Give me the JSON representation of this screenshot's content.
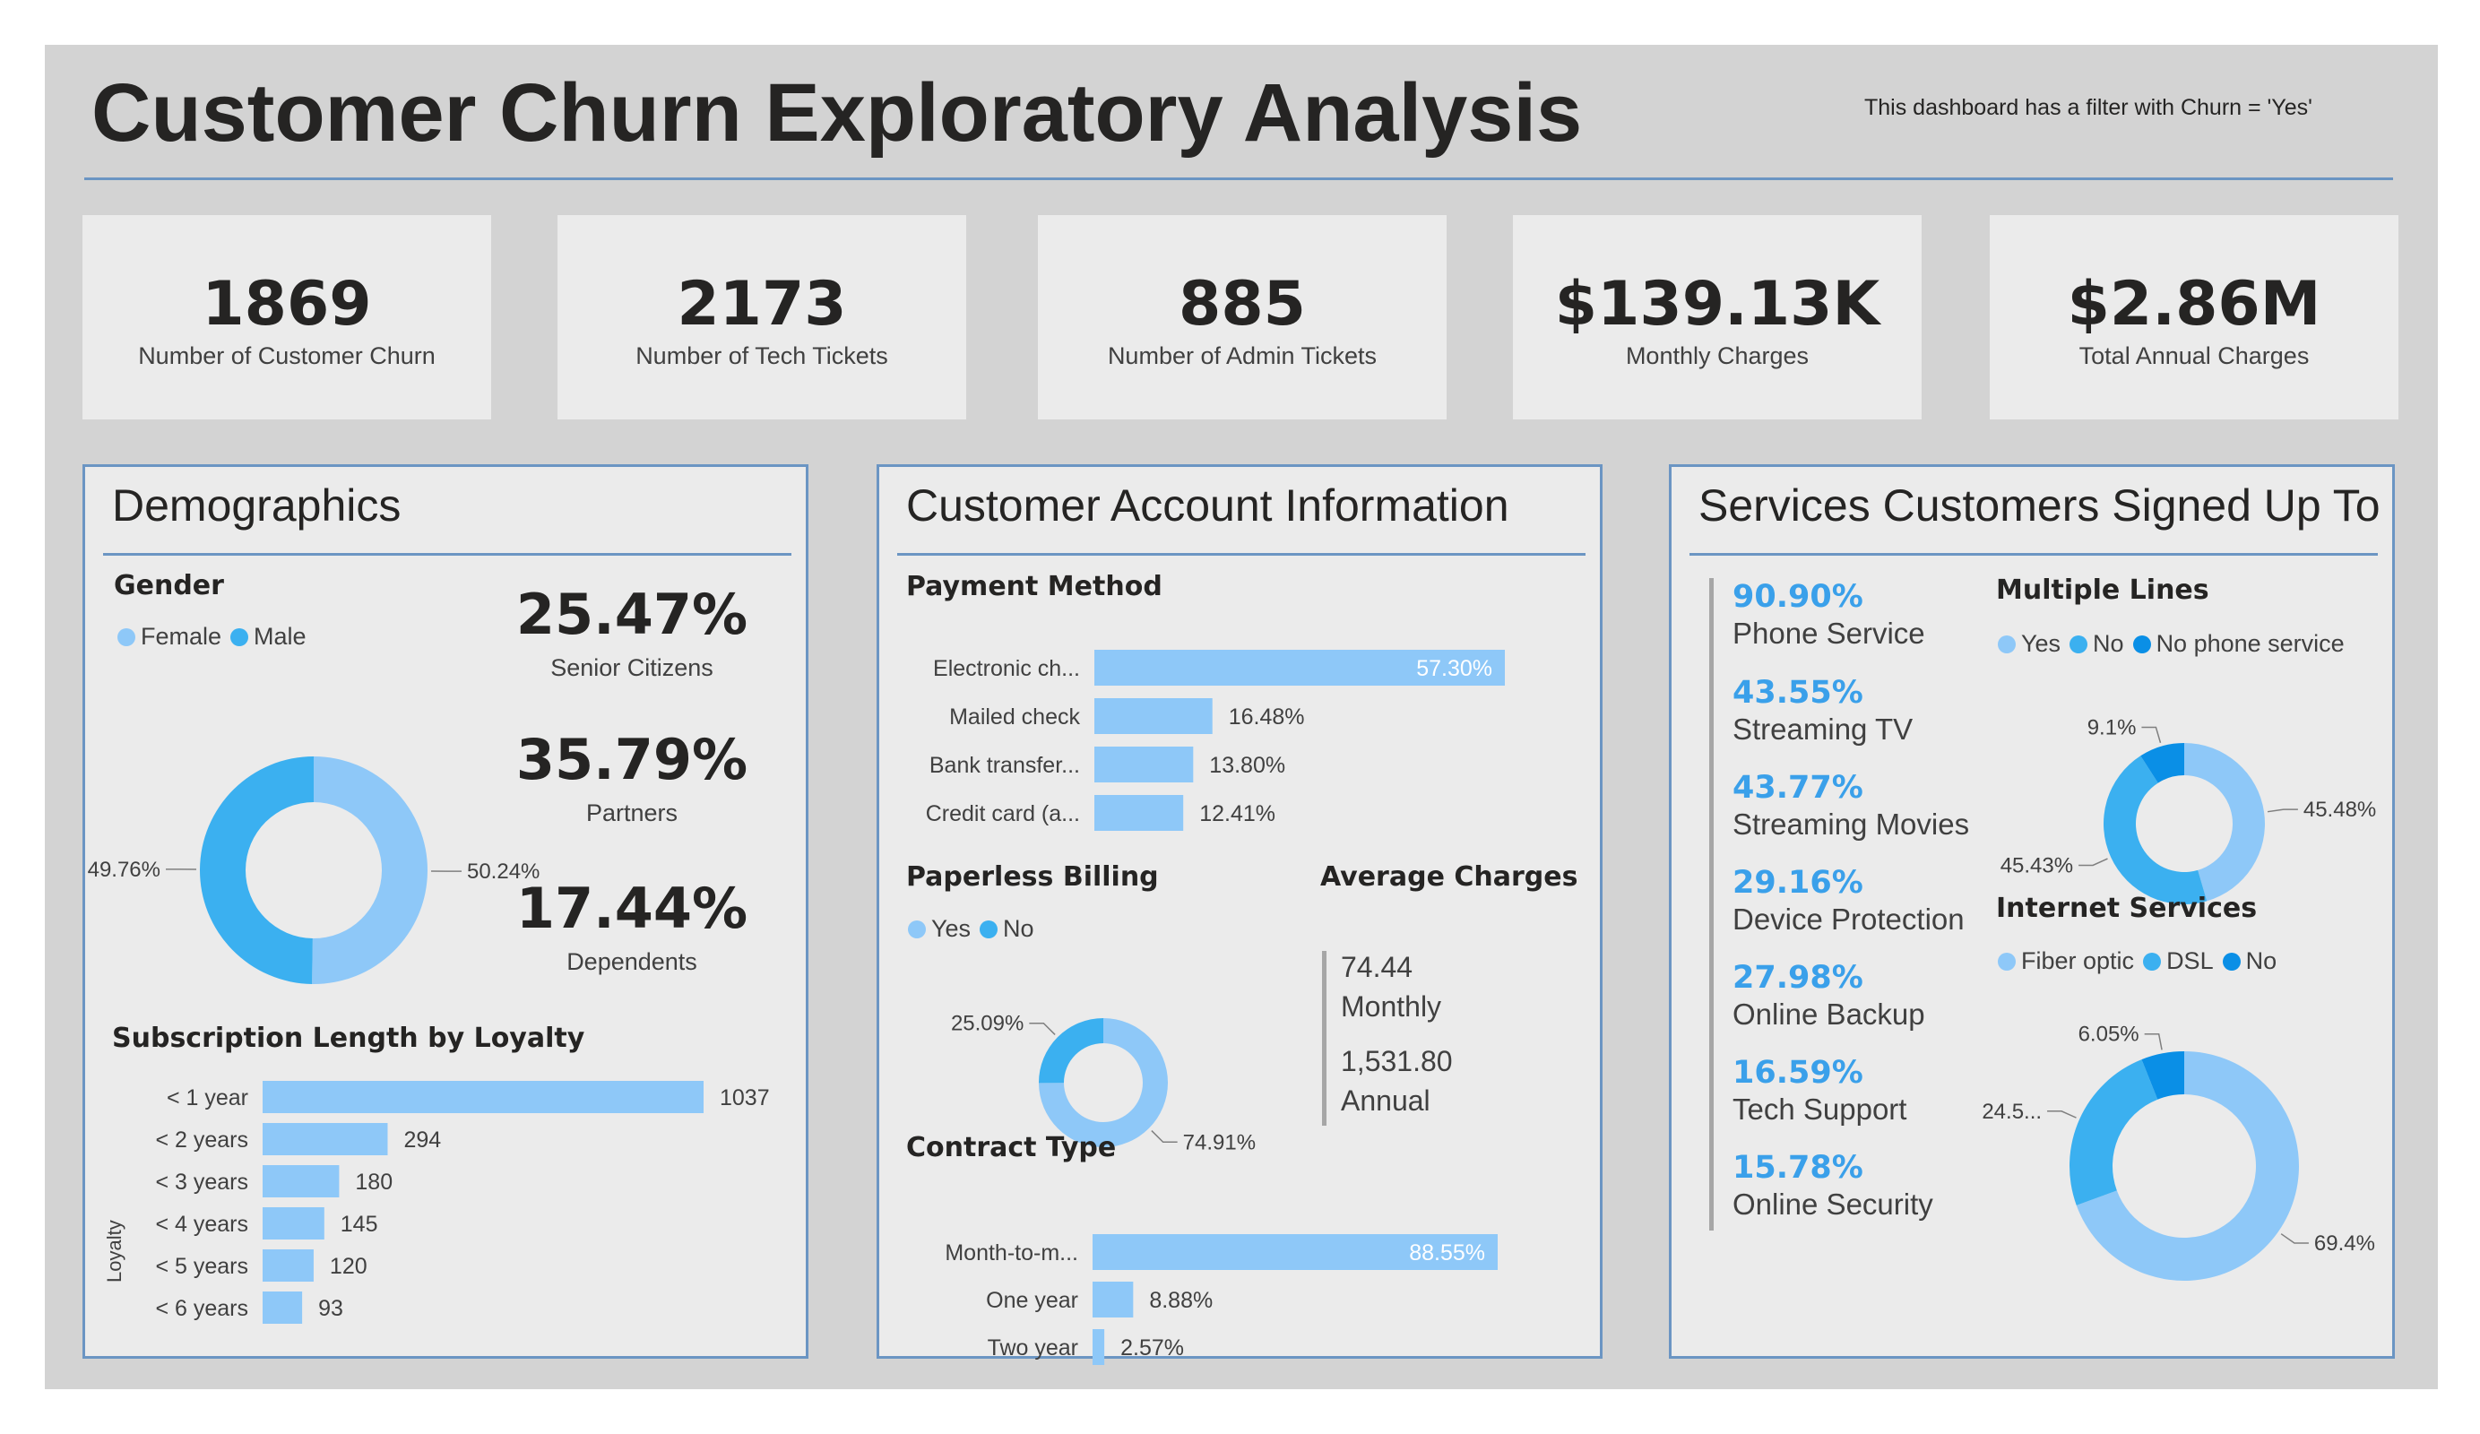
{
  "header": {
    "title": "Customer Churn Exploratory Analysis",
    "filter_note": "This dashboard has a filter with Churn = 'Yes'"
  },
  "kpis": [
    {
      "value": "1869",
      "label": "Number of Customer Churn"
    },
    {
      "value": "2173",
      "label": "Number of Tech Tickets"
    },
    {
      "value": "885",
      "label": "Number of Admin Tickets"
    },
    {
      "value": "$139.13K",
      "label": "Monthly Charges"
    },
    {
      "value": "$2.86M",
      "label": "Total Annual Charges"
    }
  ],
  "colors": {
    "light_blue": "#8ec8f8",
    "mid_blue": "#3bb0f0",
    "deep_blue": "#0a8fe6",
    "accent_text": "#3aa0ea",
    "border": "#6b95c3"
  },
  "demographics": {
    "title": "Demographics",
    "gender_title": "Gender",
    "gender_legend": [
      "Female",
      "Male"
    ],
    "stats": [
      {
        "value": "25.47%",
        "label": "Senior Citizens"
      },
      {
        "value": "35.79%",
        "label": "Partners"
      },
      {
        "value": "17.44%",
        "label": "Dependents"
      }
    ],
    "loyalty_title": "Subscription Length by Loyalty",
    "loyalty_axis": "Loyalty"
  },
  "account": {
    "title": "Customer Account Information",
    "payment_title": "Payment Method",
    "paperless_title": "Paperless Billing",
    "paperless_legend": [
      "Yes",
      "No"
    ],
    "avg_title": "Average Charges",
    "avg_monthly_value": "74.44",
    "avg_monthly_label": "Monthly",
    "avg_annual_value": "1,531.80",
    "avg_annual_label": "Annual",
    "contract_title": "Contract Type"
  },
  "services": {
    "title": "Services Customers Signed Up To",
    "items": [
      {
        "pct": "90.90%",
        "name": "Phone Service"
      },
      {
        "pct": "43.55%",
        "name": "Streaming TV"
      },
      {
        "pct": "43.77%",
        "name": "Streaming Movies"
      },
      {
        "pct": "29.16%",
        "name": "Device Protection"
      },
      {
        "pct": "27.98%",
        "name": "Online Backup"
      },
      {
        "pct": "16.59%",
        "name": "Tech Support"
      },
      {
        "pct": "15.78%",
        "name": "Online Security"
      }
    ],
    "multiple_lines_title": "Multiple Lines",
    "multiple_lines_legend": [
      "Yes",
      "No",
      "No phone service"
    ],
    "internet_title": "Internet Services",
    "internet_legend": [
      "Fiber optic",
      "DSL",
      "No"
    ]
  },
  "chart_data": [
    {
      "id": "gender",
      "type": "pie",
      "donut": true,
      "categories": [
        "Female",
        "Male"
      ],
      "values": [
        50.24,
        49.76
      ],
      "labels": [
        "50.24%",
        "49.76%"
      ]
    },
    {
      "id": "loyalty",
      "type": "bar",
      "orientation": "horizontal",
      "ylabel": "Loyalty",
      "categories": [
        "< 1 year",
        "< 2 years",
        "< 3 years",
        "< 4 years",
        "< 5 years",
        "< 6 years"
      ],
      "values": [
        1037,
        294,
        180,
        145,
        120,
        93
      ],
      "labels": [
        "1037",
        "294",
        "180",
        "145",
        "120",
        "93"
      ]
    },
    {
      "id": "payment",
      "type": "bar",
      "orientation": "horizontal",
      "categories": [
        "Electronic ch...",
        "Mailed check",
        "Bank transfer...",
        "Credit card (a..."
      ],
      "values": [
        57.3,
        16.48,
        13.8,
        12.41
      ],
      "labels": [
        "57.30%",
        "16.48%",
        "13.80%",
        "12.41%"
      ]
    },
    {
      "id": "paperless",
      "type": "pie",
      "donut": true,
      "categories": [
        "Yes",
        "No"
      ],
      "values": [
        74.91,
        25.09
      ],
      "labels": [
        "74.91%",
        "25.09%"
      ]
    },
    {
      "id": "contract",
      "type": "bar",
      "orientation": "horizontal",
      "categories": [
        "Month-to-m...",
        "One year",
        "Two year"
      ],
      "values": [
        88.55,
        8.88,
        2.57
      ],
      "labels": [
        "88.55%",
        "8.88%",
        "2.57%"
      ]
    },
    {
      "id": "multiple_lines",
      "type": "pie",
      "donut": true,
      "categories": [
        "Yes",
        "No",
        "No phone service"
      ],
      "values": [
        45.48,
        45.43,
        9.1
      ],
      "labels": [
        "45.48%",
        "45.43%",
        "9.1%"
      ]
    },
    {
      "id": "internet",
      "type": "pie",
      "donut": true,
      "categories": [
        "Fiber optic",
        "DSL",
        "No"
      ],
      "values": [
        69.4,
        24.5,
        6.05
      ],
      "labels": [
        "69.4%",
        "24.5...",
        "6.05%"
      ]
    }
  ]
}
